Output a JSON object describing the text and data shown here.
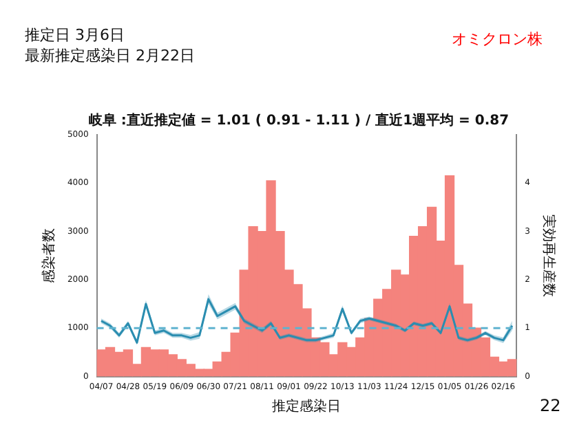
{
  "chart_data": {
    "type": "bar",
    "title": "岐阜 :直近推定値 = 1.01 ( 0.91 - 1.11 ) / 直近1週平均 = 0.87",
    "xlabel": "推定感染日",
    "ylabel": "感染者数",
    "y2label": "実効再生産数",
    "annotations": [
      "推定日  3月6日",
      "最新推定感染日  2月22日",
      "オミクロン株",
      "22"
    ],
    "categories": [
      "04/07",
      null,
      null,
      "04/28",
      null,
      null,
      "05/19",
      null,
      null,
      "06/09",
      null,
      null,
      "06/30",
      null,
      null,
      "07/21",
      null,
      null,
      "08/11",
      null,
      null,
      "09/01",
      null,
      null,
      "09/22",
      null,
      null,
      "10/13",
      null,
      null,
      "11/03",
      null,
      null,
      "11/24",
      null,
      null,
      "12/15",
      null,
      null,
      "01/05",
      null,
      null,
      "01/26",
      null,
      null,
      "02/16",
      null
    ],
    "series": [
      {
        "color": "#f4837d",
        "values": [
          550,
          600,
          500,
          550,
          250,
          600,
          550,
          550,
          450,
          350,
          250,
          150,
          150,
          300,
          500,
          900,
          2200,
          3100,
          3000,
          4050,
          3000,
          2200,
          1900,
          1400,
          800,
          700,
          450,
          700,
          600,
          800,
          1200,
          1600,
          1800,
          2200,
          2100,
          2900,
          3100,
          3500,
          2800,
          4150,
          2300,
          1500,
          1000,
          800,
          400,
          300,
          350
        ]
      },
      {
        "type": "line",
        "axis": "y2",
        "color": "#2a8db0",
        "values": [
          1.15,
          1.05,
          0.85,
          1.1,
          0.7,
          1.5,
          0.9,
          0.95,
          0.85,
          0.85,
          0.8,
          0.85,
          1.6,
          1.25,
          1.35,
          1.45,
          1.15,
          1.05,
          0.95,
          1.1,
          0.8,
          0.85,
          0.8,
          0.75,
          0.75,
          0.8,
          0.85,
          1.4,
          0.9,
          1.15,
          1.2,
          1.15,
          1.1,
          1.05,
          0.95,
          1.1,
          1.05,
          1.1,
          0.9,
          1.45,
          0.8,
          0.75,
          0.8,
          0.9,
          0.8,
          0.75,
          1.05
        ],
        "lower": [
          1.1,
          1.0,
          0.8,
          1.05,
          0.65,
          1.42,
          0.85,
          0.9,
          0.8,
          0.8,
          0.74,
          0.78,
          1.5,
          1.18,
          1.28,
          1.38,
          1.1,
          1.0,
          0.9,
          1.05,
          0.76,
          0.81,
          0.76,
          0.71,
          0.71,
          0.76,
          0.8,
          1.33,
          0.86,
          1.1,
          1.16,
          1.11,
          1.06,
          1.01,
          0.91,
          1.06,
          1.01,
          1.06,
          0.86,
          1.38,
          0.76,
          0.71,
          0.76,
          0.86,
          0.75,
          0.69,
          0.95
        ],
        "upper": [
          1.2,
          1.1,
          0.9,
          1.15,
          0.75,
          1.58,
          0.95,
          1.0,
          0.9,
          0.9,
          0.86,
          0.92,
          1.7,
          1.32,
          1.42,
          1.52,
          1.2,
          1.1,
          1.0,
          1.15,
          0.84,
          0.89,
          0.84,
          0.79,
          0.79,
          0.84,
          0.9,
          1.47,
          0.94,
          1.2,
          1.24,
          1.19,
          1.14,
          1.09,
          0.99,
          1.14,
          1.09,
          1.14,
          0.94,
          1.52,
          0.84,
          0.79,
          0.84,
          0.94,
          0.85,
          0.81,
          1.15
        ]
      }
    ],
    "ylim": [
      0,
      5000
    ],
    "yticks": [
      0,
      1000,
      2000,
      3000,
      4000,
      5000
    ],
    "y2lim": [
      0,
      5
    ],
    "y2ticks": [
      0,
      1,
      2,
      3,
      4
    ],
    "ref_lines": [
      {
        "axis": "y2",
        "value": 1,
        "color": "#5fb3cf",
        "line_style": "dashed"
      }
    ],
    "grid": false,
    "legend": false
  }
}
